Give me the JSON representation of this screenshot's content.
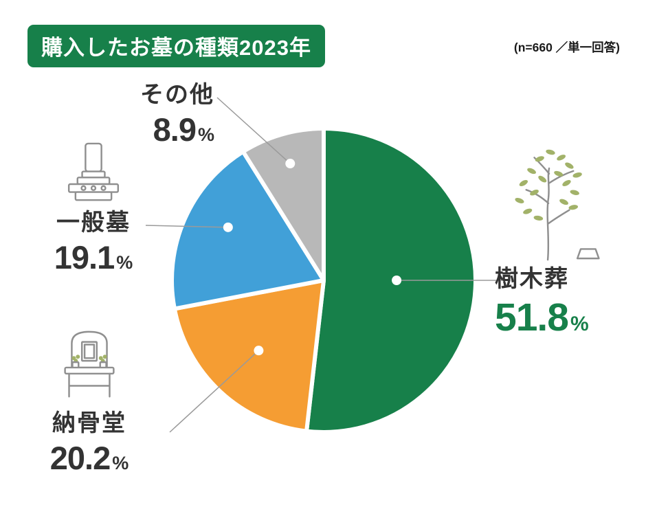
{
  "chart_data": {
    "type": "pie",
    "title": "購入したお墓の種類2023年",
    "sample_note": "(n=660 ／単一回答)",
    "start_angle": "top",
    "direction": "clockwise",
    "percent_sign": "%",
    "slices": [
      {
        "label": "樹木葬",
        "value": 51.8,
        "color": "#17804a"
      },
      {
        "label": "納骨堂",
        "value": 20.2,
        "color": "#f59d33"
      },
      {
        "label": "一般墓",
        "value": 19.1,
        "color": "#41a0d8"
      },
      {
        "label": "その他",
        "value": 8.9,
        "color": "#b8b8b8"
      }
    ]
  },
  "icons": {
    "tree": "tree-icon",
    "gravestone": "gravestone-icon",
    "columbarium": "columbarium-icon"
  },
  "colors": {
    "accent_green": "#17804a",
    "text_dark": "#333333",
    "leader_line": "#9a9a9a",
    "dot": "#ffffff",
    "icon_stroke": "#8f8f8f",
    "leaf_green": "#a2b269"
  }
}
